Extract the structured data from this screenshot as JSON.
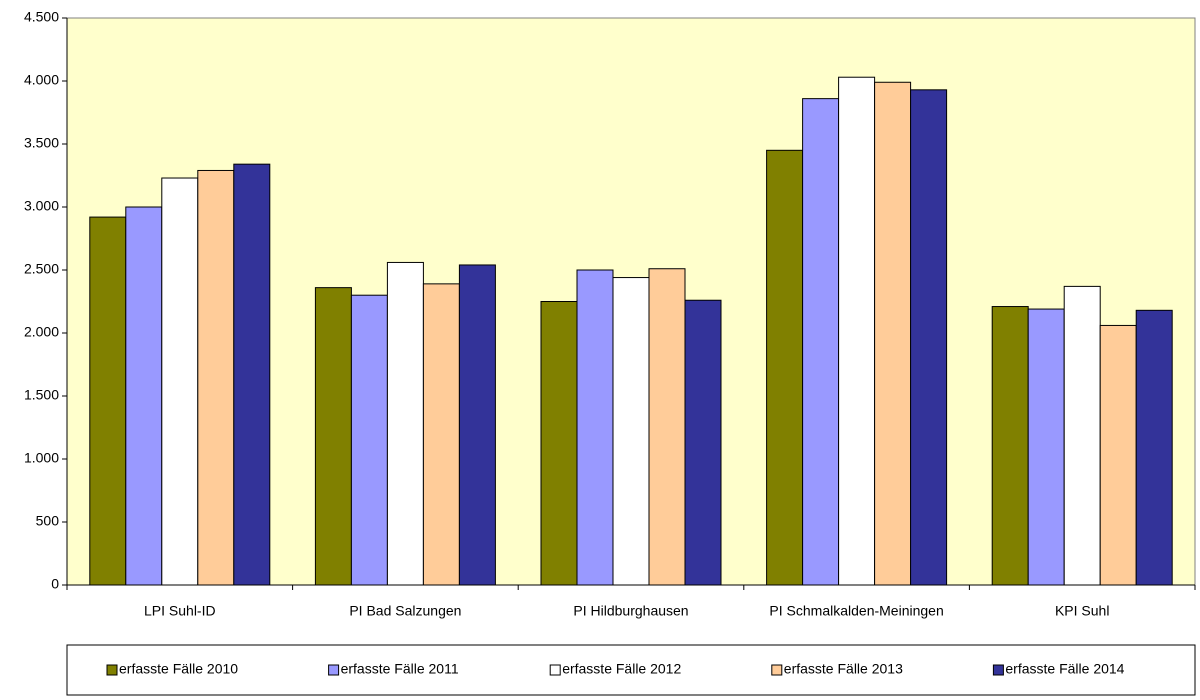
{
  "chart_data": {
    "type": "bar",
    "categories": [
      "LPI Suhl-ID",
      "PI Bad Salzungen",
      "PI Hildburghausen",
      "PI Schmalkalden-Meiningen",
      "KPI Suhl"
    ],
    "series": [
      {
        "name": "erfasste Fälle 2010",
        "color": "#808000",
        "values": [
          2920,
          2360,
          2250,
          3450,
          2210
        ]
      },
      {
        "name": "erfasste Fälle 2011",
        "color": "#9999ff",
        "values": [
          3000,
          2300,
          2500,
          3860,
          2190
        ]
      },
      {
        "name": "erfasste Fälle 2012",
        "color": "#ffffff",
        "values": [
          3230,
          2560,
          2440,
          4030,
          2370
        ]
      },
      {
        "name": "erfasste Fälle 2013",
        "color": "#ffcc99",
        "values": [
          3290,
          2390,
          2510,
          3990,
          2060
        ]
      },
      {
        "name": "erfasste Fälle 2014",
        "color": "#333399",
        "values": [
          3340,
          2540,
          2260,
          3930,
          2180
        ]
      }
    ],
    "ylim": [
      0,
      4500
    ],
    "yticks": [
      0,
      500,
      {
        "value": 1000,
        "label": "1.000"
      },
      {
        "value": 1500,
        "label": "1.500"
      },
      {
        "value": 2000,
        "label": "2.000"
      },
      {
        "value": 2500,
        "label": "2.500"
      },
      {
        "value": 3000,
        "label": "3.000"
      },
      {
        "value": 3500,
        "label": "3.500"
      },
      {
        "value": 4000,
        "label": "4.000"
      },
      {
        "value": 4500,
        "label": "4.500"
      }
    ],
    "plot_background": "#ffffcc",
    "legend": "bottom"
  }
}
